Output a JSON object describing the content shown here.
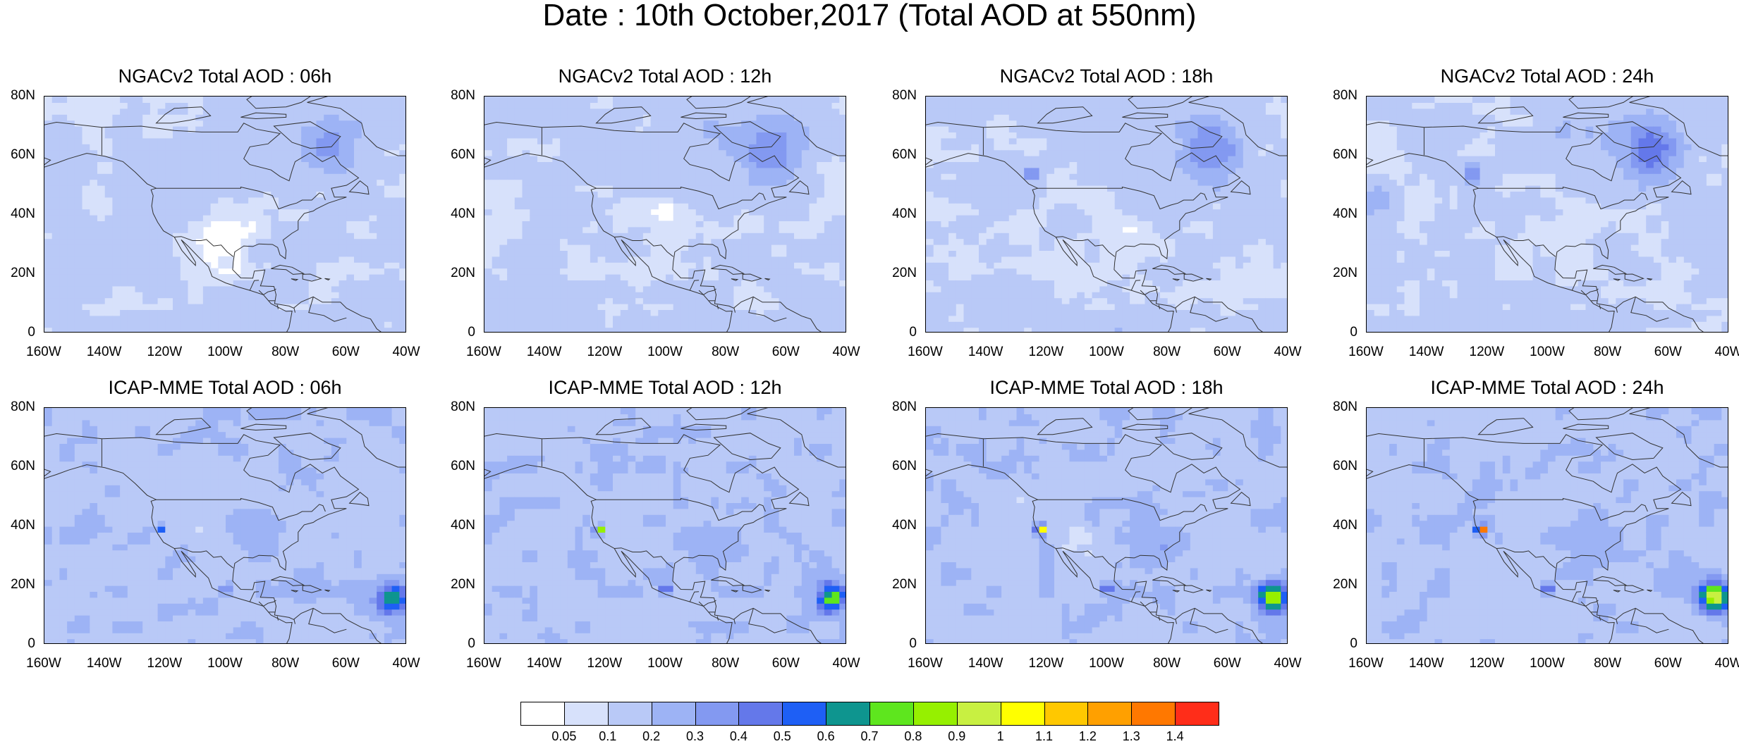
{
  "title": "Date : 10th October,2017 (Total AOD at 550nm)",
  "axes": {
    "y_ticks": [
      "80N",
      "60N",
      "40N",
      "20N",
      "0"
    ],
    "x_ticks": [
      "160W",
      "140W",
      "120W",
      "100W",
      "80W",
      "60W",
      "40W"
    ],
    "lon_range": [
      -160,
      -40
    ],
    "lat_range": [
      0,
      80
    ]
  },
  "panels": [
    {
      "title": "NGACv2 Total AOD : 06h"
    },
    {
      "title": "NGACv2 Total AOD : 12h"
    },
    {
      "title": "NGACv2 Total AOD : 18h"
    },
    {
      "title": "NGACv2 Total AOD : 24h"
    },
    {
      "title": "ICAP-MME Total AOD : 06h"
    },
    {
      "title": "ICAP-MME Total AOD : 12h"
    },
    {
      "title": "ICAP-MME Total AOD : 18h"
    },
    {
      "title": "ICAP-MME Total AOD : 24h"
    }
  ],
  "colorbar": {
    "colors": [
      "#ffffff",
      "#d7e1fb",
      "#b9c9f7",
      "#9db3f5",
      "#8399f1",
      "#6478ea",
      "#1e5ff5",
      "#0e958f",
      "#5ee61e",
      "#96f000",
      "#c8f041",
      "#ffff00",
      "#ffc800",
      "#ffa000",
      "#ff7800",
      "#ff2d19"
    ],
    "labels": [
      "0.05",
      "0.1",
      "0.2",
      "0.3",
      "0.4",
      "0.5",
      "0.6",
      "0.7",
      "0.8",
      "0.9",
      "1",
      "1.1",
      "1.2",
      "1.3",
      "1.4"
    ]
  }
}
